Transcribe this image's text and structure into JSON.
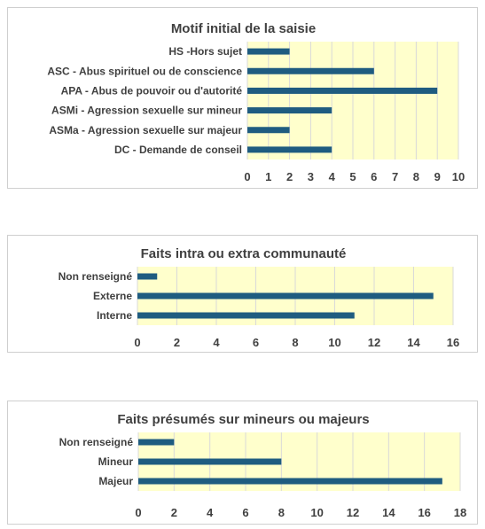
{
  "chart_data": [
    {
      "type": "bar",
      "orientation": "horizontal",
      "title": "Motif initial de la saisie",
      "categories": [
        "HS -Hors sujet",
        "ASC - Abus spirituel ou de conscience",
        "APA - Abus de pouvoir ou d'autorité",
        "ASMi - Agression sexuelle sur mineur",
        "ASMa - Agression sexuelle sur majeur",
        "DC - Demande de conseil"
      ],
      "values": [
        2,
        6,
        9,
        4,
        2,
        4
      ],
      "xlim": [
        0,
        10
      ],
      "xticks": [
        0,
        1,
        2,
        3,
        4,
        5,
        6,
        7,
        8,
        9,
        10
      ],
      "grid": true,
      "legend": "none"
    },
    {
      "type": "bar",
      "orientation": "horizontal",
      "title": "Faits intra ou extra communauté",
      "categories": [
        "Non renseigné",
        "Externe",
        "Interne"
      ],
      "values": [
        1,
        15,
        11
      ],
      "xlim": [
        0,
        16
      ],
      "xticks": [
        0,
        2,
        4,
        6,
        8,
        10,
        12,
        14,
        16
      ],
      "grid": true,
      "legend": "none"
    },
    {
      "type": "bar",
      "orientation": "horizontal",
      "title": "Faits présumés sur mineurs ou majeurs",
      "categories": [
        "Non renseigné",
        "Mineur",
        "Majeur"
      ],
      "values": [
        2,
        8,
        17
      ],
      "xlim": [
        0,
        18
      ],
      "xticks": [
        0,
        2,
        4,
        6,
        8,
        10,
        12,
        14,
        16,
        18
      ],
      "grid": true,
      "legend": "none"
    }
  ],
  "colors": {
    "bar": "#1f5c80",
    "plot_background": "#ffffcc",
    "gridline": "#d9d9d9"
  }
}
